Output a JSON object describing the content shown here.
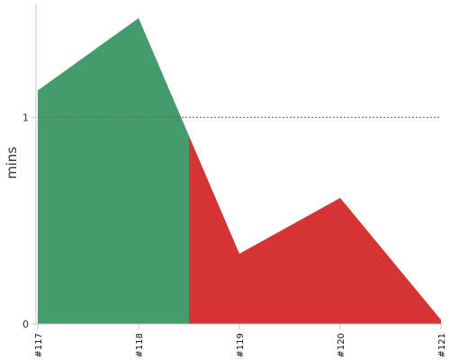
{
  "chart_data": {
    "type": "area",
    "x": [
      "#117",
      "#118",
      "#119",
      "#120",
      "#121"
    ],
    "series": [
      {
        "values": [
          1.13,
          1.48,
          0.34,
          0.61,
          0.02
        ]
      }
    ],
    "ylabel": "mins",
    "ylim": [
      0,
      1.55
    ],
    "yticks": [
      0,
      1
    ],
    "reference_line": {
      "y": 1,
      "style": "dotted"
    },
    "colors": {
      "below_split": "#449b6b",
      "above_split": "#d63434"
    },
    "color_split_after_x_index": 1.5,
    "grid": false
  }
}
